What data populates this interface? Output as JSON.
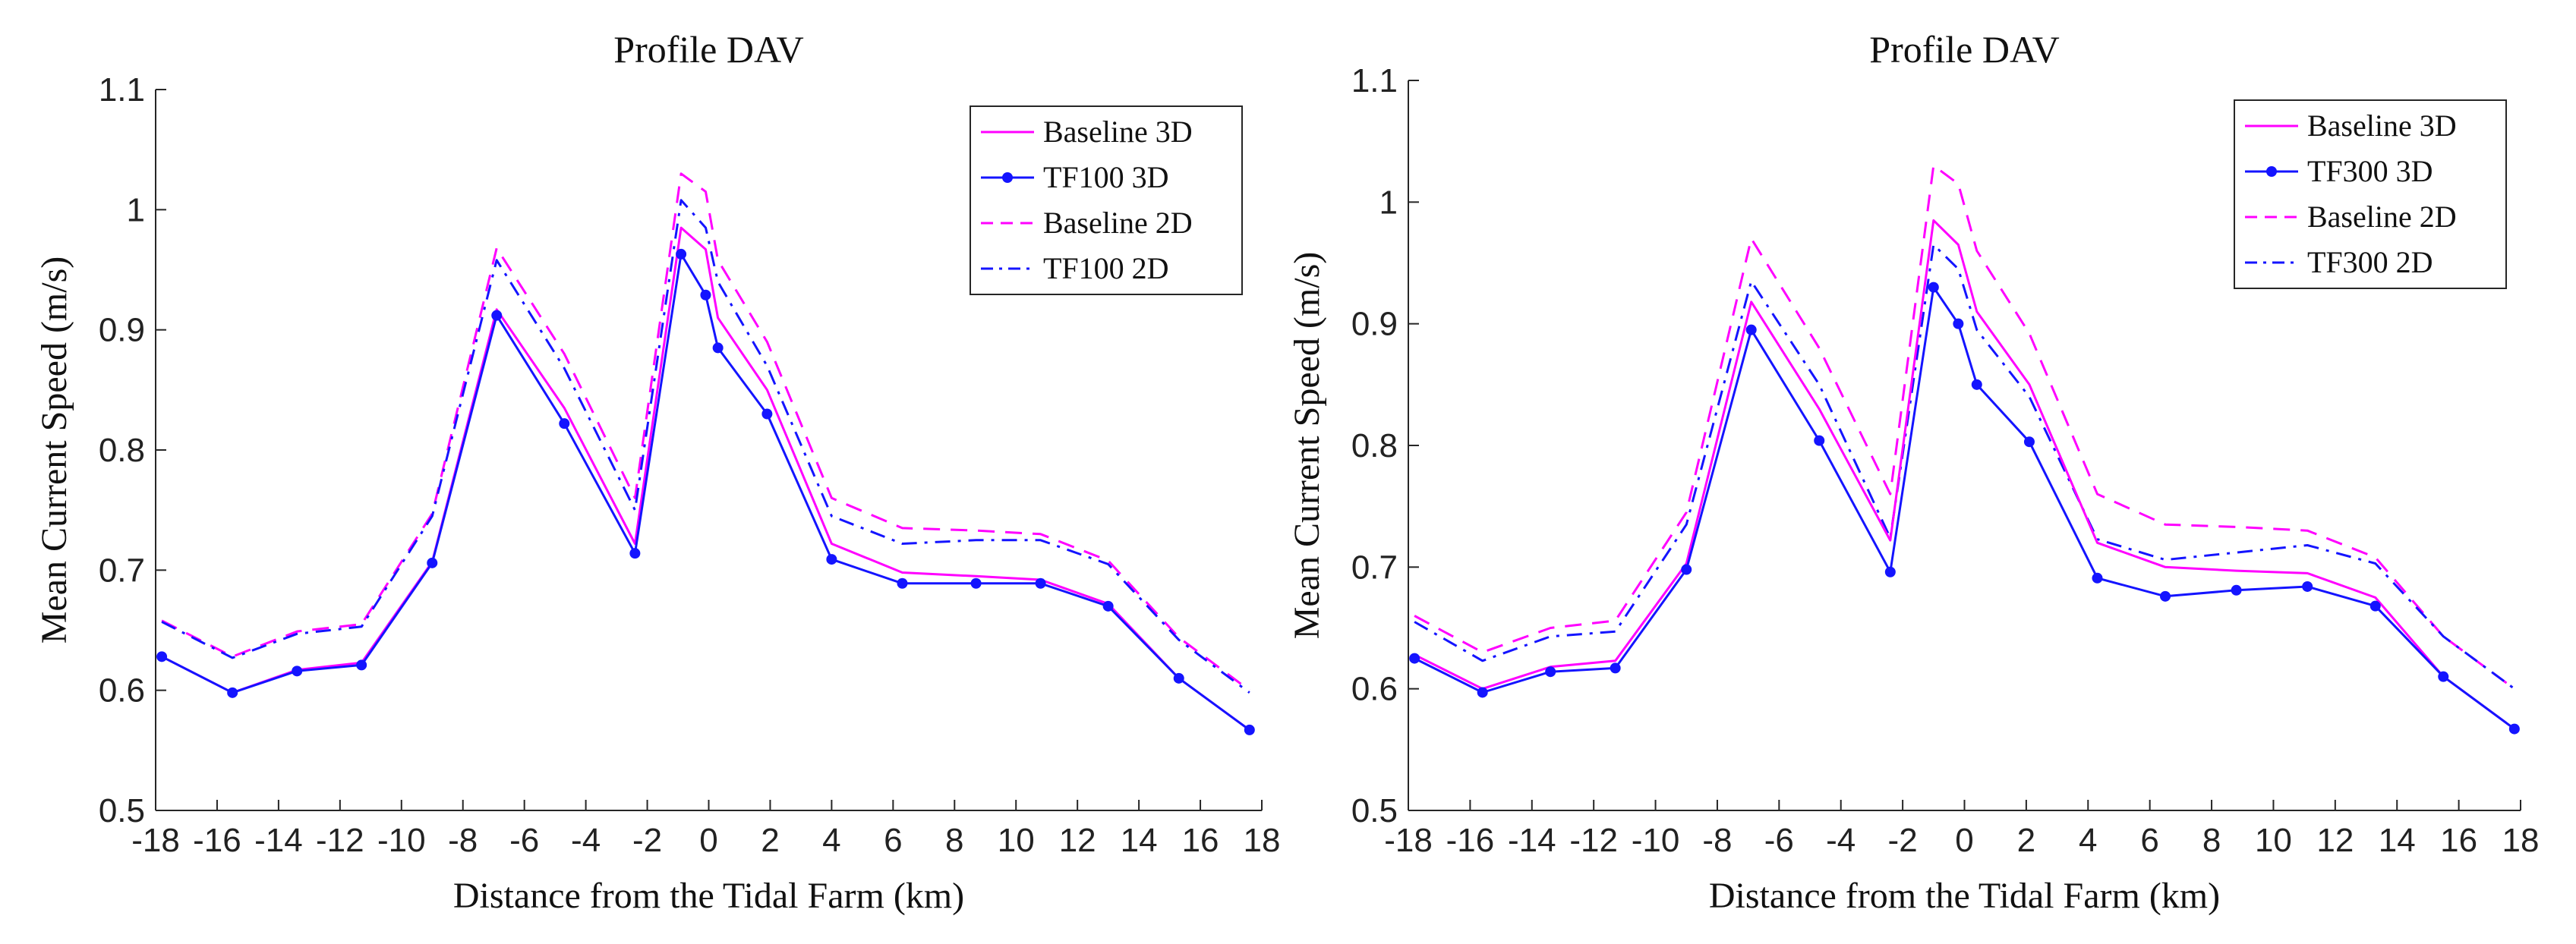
{
  "chart_data": [
    {
      "type": "line",
      "title": "Profile DAV",
      "xlabel": "Distance from the Tidal Farm (km)",
      "ylabel": "Mean Current Speed (m/s)",
      "xlim": [
        -18,
        18
      ],
      "ylim": [
        0.5,
        1.1
      ],
      "xticks": [
        -18,
        -16,
        -14,
        -12,
        -10,
        -8,
        -6,
        -4,
        -2,
        0,
        2,
        4,
        6,
        8,
        10,
        12,
        14,
        16,
        18
      ],
      "yticks": [
        0.5,
        0.6,
        0.7,
        0.8,
        0.9,
        1,
        1.1
      ],
      "legend_position": "top-right",
      "grid": false,
      "series": [
        {
          "name": "Baseline 3D",
          "color": "#ff00ff",
          "style": "solid",
          "marker": "none",
          "x": [
            -17.8,
            -15.5,
            -13.4,
            -11.3,
            -9.0,
            -6.9,
            -4.7,
            -2.4,
            -0.9,
            -0.1,
            0.3,
            1.9,
            4.0,
            6.3,
            8.7,
            10.8,
            13.0,
            15.3,
            17.6
          ],
          "y": [
            0.628,
            0.598,
            0.617,
            0.623,
            0.707,
            0.917,
            0.835,
            0.722,
            0.985,
            0.967,
            0.91,
            0.85,
            0.722,
            0.698,
            0.695,
            0.692,
            0.672,
            0.61,
            0.567
          ]
        },
        {
          "name": "TF100 3D",
          "color": "#1414ff",
          "style": "solid",
          "marker": "dot",
          "x": [
            -17.8,
            -15.5,
            -13.4,
            -11.3,
            -9.0,
            -6.9,
            -4.7,
            -2.4,
            -0.9,
            -0.1,
            0.3,
            1.9,
            4.0,
            6.3,
            8.7,
            10.8,
            13.0,
            15.3,
            17.6
          ],
          "y": [
            0.628,
            0.598,
            0.616,
            0.621,
            0.706,
            0.912,
            0.822,
            0.714,
            0.963,
            0.929,
            0.885,
            0.83,
            0.709,
            0.689,
            0.689,
            0.689,
            0.67,
            0.61,
            0.567
          ]
        },
        {
          "name": "Baseline 2D",
          "color": "#ff00ff",
          "style": "dashed",
          "marker": "none",
          "x": [
            -17.8,
            -15.5,
            -13.4,
            -11.3,
            -9.0,
            -6.9,
            -4.7,
            -2.4,
            -0.9,
            -0.1,
            0.3,
            1.9,
            4.0,
            6.3,
            8.7,
            10.8,
            13.0,
            15.3,
            17.6
          ],
          "y": [
            0.658,
            0.628,
            0.649,
            0.655,
            0.747,
            0.968,
            0.88,
            0.76,
            1.03,
            1.015,
            0.958,
            0.89,
            0.76,
            0.735,
            0.733,
            0.73,
            0.708,
            0.644,
            0.6
          ]
        },
        {
          "name": "TF100 2D",
          "color": "#1414ff",
          "style": "dashdot",
          "marker": "none",
          "x": [
            -17.8,
            -15.5,
            -13.4,
            -11.3,
            -9.0,
            -6.9,
            -4.7,
            -2.4,
            -0.9,
            -0.1,
            0.3,
            1.9,
            4.0,
            6.3,
            8.7,
            10.8,
            13.0,
            15.3,
            17.6
          ],
          "y": [
            0.657,
            0.627,
            0.647,
            0.653,
            0.745,
            0.958,
            0.868,
            0.75,
            1.008,
            0.985,
            0.94,
            0.87,
            0.745,
            0.722,
            0.725,
            0.725,
            0.705,
            0.642,
            0.598
          ]
        }
      ]
    },
    {
      "type": "line",
      "title": "Profile DAV",
      "xlabel": "Distance from the Tidal Farm (km)",
      "ylabel": "Mean Current Speed (m/s)",
      "xlim": [
        -18,
        18
      ],
      "ylim": [
        0.5,
        1.1
      ],
      "xticks": [
        -18,
        -16,
        -14,
        -12,
        -10,
        -8,
        -6,
        -4,
        -2,
        0,
        2,
        4,
        6,
        8,
        10,
        12,
        14,
        16,
        18
      ],
      "yticks": [
        0.5,
        0.6,
        0.7,
        0.8,
        0.9,
        1,
        1.1
      ],
      "legend_position": "top-right",
      "grid": false,
      "series": [
        {
          "name": "Baseline 3D",
          "color": "#ff00ff",
          "style": "solid",
          "marker": "none",
          "x": [
            -17.8,
            -15.6,
            -13.4,
            -11.3,
            -9.0,
            -6.9,
            -4.7,
            -2.4,
            -1.0,
            -0.2,
            0.4,
            2.1,
            4.3,
            6.5,
            8.8,
            11.1,
            13.3,
            15.5,
            17.8
          ],
          "y": [
            0.628,
            0.6,
            0.618,
            0.623,
            0.703,
            0.918,
            0.83,
            0.722,
            0.985,
            0.965,
            0.91,
            0.85,
            0.72,
            0.7,
            0.697,
            0.695,
            0.675,
            0.61,
            0.567
          ]
        },
        {
          "name": "TF300 3D",
          "color": "#1414ff",
          "style": "solid",
          "marker": "dot",
          "x": [
            -17.8,
            -15.6,
            -13.4,
            -11.3,
            -9.0,
            -6.9,
            -4.7,
            -2.4,
            -1.0,
            -0.2,
            0.4,
            2.1,
            4.3,
            6.5,
            8.8,
            11.1,
            13.3,
            15.5,
            17.8
          ],
          "y": [
            0.625,
            0.597,
            0.614,
            0.617,
            0.698,
            0.895,
            0.804,
            0.696,
            0.93,
            0.9,
            0.85,
            0.803,
            0.691,
            0.676,
            0.681,
            0.684,
            0.668,
            0.61,
            0.567
          ]
        },
        {
          "name": "Baseline 2D",
          "color": "#ff00ff",
          "style": "dashed",
          "marker": "none",
          "x": [
            -17.8,
            -15.6,
            -13.4,
            -11.3,
            -9.0,
            -6.9,
            -4.7,
            -2.4,
            -1.0,
            -0.2,
            0.4,
            2.1,
            4.3,
            6.5,
            8.8,
            11.1,
            13.3,
            15.5,
            17.8
          ],
          "y": [
            0.66,
            0.63,
            0.65,
            0.656,
            0.745,
            0.97,
            0.88,
            0.76,
            1.03,
            1.015,
            0.96,
            0.892,
            0.76,
            0.735,
            0.733,
            0.73,
            0.708,
            0.643,
            0.6
          ]
        },
        {
          "name": "TF300 2D",
          "color": "#1414ff",
          "style": "dashdot",
          "marker": "none",
          "x": [
            -17.8,
            -15.6,
            -13.4,
            -11.3,
            -9.0,
            -6.9,
            -4.7,
            -2.4,
            -1.0,
            -0.2,
            0.4,
            2.1,
            4.3,
            6.5,
            8.8,
            11.1,
            13.3,
            15.5,
            17.8
          ],
          "y": [
            0.655,
            0.623,
            0.643,
            0.647,
            0.735,
            0.935,
            0.85,
            0.724,
            0.965,
            0.945,
            0.895,
            0.84,
            0.723,
            0.706,
            0.712,
            0.718,
            0.703,
            0.643,
            0.6
          ]
        }
      ]
    }
  ]
}
